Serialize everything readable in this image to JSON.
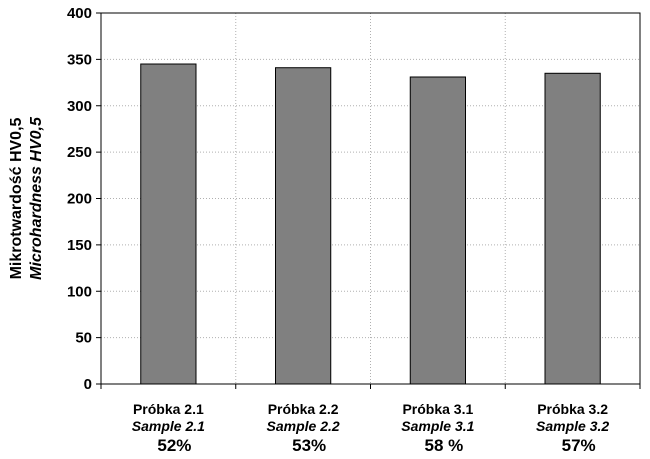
{
  "chart_data": {
    "type": "bar",
    "categories": [
      {
        "label": "Próbka 2.1",
        "label_en": "Sample 2.1",
        "percent": "52%"
      },
      {
        "label": "Próbka 2.2",
        "label_en": "Sample 2.2",
        "percent": "53%"
      },
      {
        "label": "Próbka 3.1",
        "label_en": "Sample 3.1",
        "percent": "58 %"
      },
      {
        "label": "Próbka 3.2",
        "label_en": "Sample 3.2",
        "percent": "57%"
      }
    ],
    "values": [
      345,
      341,
      331,
      335
    ],
    "ylabel": "Mikrotwardość HV0,5",
    "ylabel_en": "Microhardness HV0,5",
    "ylim": [
      0,
      400
    ],
    "yticks": [
      0,
      50,
      100,
      150,
      200,
      250,
      300,
      350,
      400
    ],
    "grid": true,
    "bar_color": "#808080",
    "bar_edge_color": "#000000"
  }
}
